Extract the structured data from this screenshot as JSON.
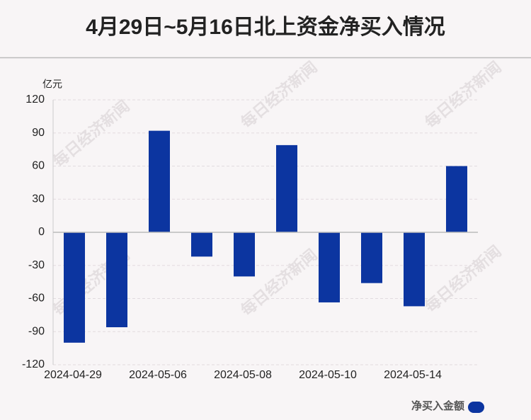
{
  "chart_data": {
    "type": "bar",
    "title": "4月29日~5月16日北上资金净买入情况",
    "y_unit": "亿元",
    "watermark": "每日经济新闻",
    "categories": [
      "2024-04-29",
      null,
      "2024-05-06",
      null,
      "2024-05-08",
      null,
      "2024-05-10",
      null,
      "2024-05-14",
      null
    ],
    "series": [
      {
        "name": "净买入金额",
        "color": "#0c35a0",
        "values": [
          -100,
          -86,
          92,
          -22,
          -40,
          79,
          -63.5,
          -46,
          -67,
          60
        ]
      }
    ],
    "ylim": [
      -120,
      120
    ],
    "yticks": [
      -120,
      -90,
      -60,
      -30,
      0,
      30,
      60,
      90,
      120
    ],
    "grid": true
  }
}
